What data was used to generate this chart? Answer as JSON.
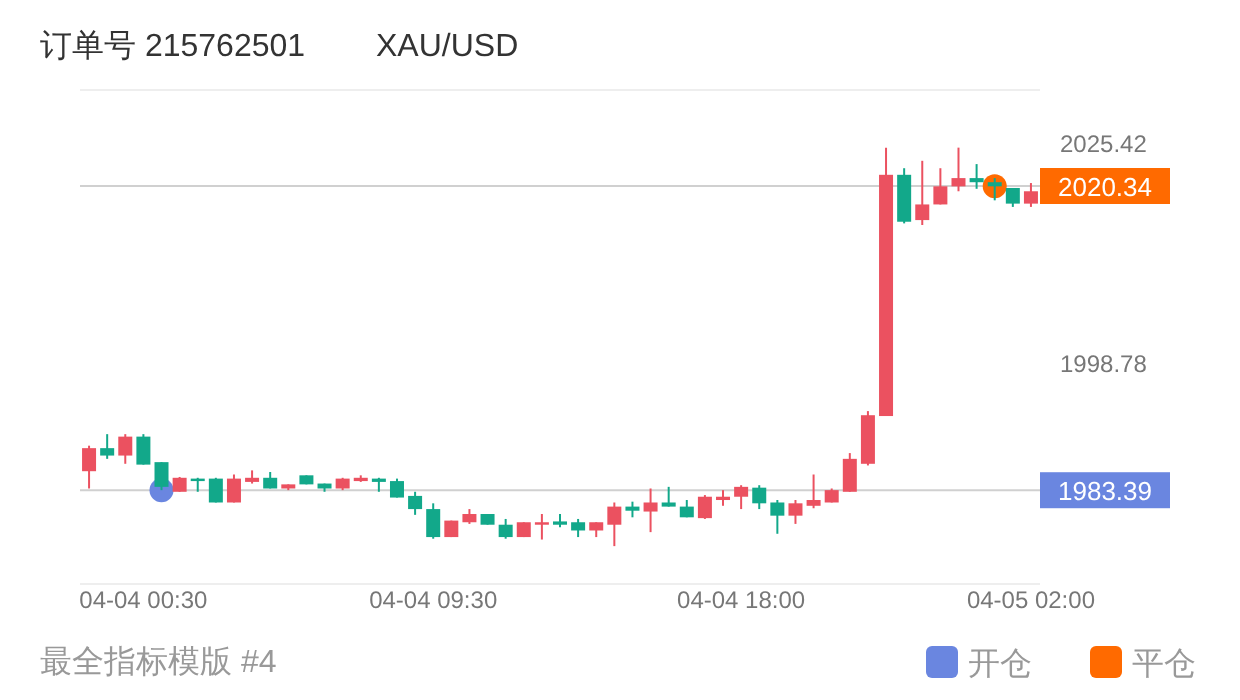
{
  "chart_data": {
    "type": "candlestick",
    "title": "订单号 215762501",
    "subtitle": "XAU/USD",
    "annotations": [
      "最全指标模版 #4"
    ],
    "categories": [
      null,
      null,
      null,
      "04-04 00:30",
      null,
      null,
      null,
      null,
      null,
      null,
      null,
      null,
      null,
      null,
      null,
      null,
      null,
      null,
      null,
      "04-04 09:30",
      null,
      null,
      null,
      null,
      null,
      null,
      null,
      null,
      null,
      null,
      null,
      null,
      null,
      null,
      null,
      null,
      "04-04 18:00",
      null,
      null,
      null,
      null,
      null,
      null,
      null,
      null,
      null,
      null,
      null,
      null,
      null,
      null,
      null,
      "04-05 02:00"
    ],
    "ohlc": [
      [
        1985.7,
        1988.8,
        1983.6,
        1988.5
      ],
      [
        1988.5,
        1990.2,
        1987.2,
        1987.6
      ],
      [
        1987.6,
        1990.2,
        1986.6,
        1989.9
      ],
      [
        1989.9,
        1990.2,
        1986.5,
        1986.5
      ],
      [
        1986.8,
        1986.8,
        1983.4,
        1983.8
      ],
      [
        1983.2,
        1985.0,
        1983.2,
        1984.9
      ],
      [
        1984.8,
        1984.9,
        1983.2,
        1984.5
      ],
      [
        1984.8,
        1984.9,
        1981.9,
        1981.9
      ],
      [
        1981.9,
        1985.3,
        1981.9,
        1984.8
      ],
      [
        1984.4,
        1985.8,
        1984.2,
        1984.9
      ],
      [
        1984.9,
        1985.6,
        1983.6,
        1983.6
      ],
      [
        1983.6,
        1984.1,
        1983.4,
        1984.1
      ],
      [
        1985.2,
        1985.2,
        1984.1,
        1984.1
      ],
      [
        1984.2,
        1984.2,
        1983.2,
        1983.6
      ],
      [
        1983.6,
        1984.9,
        1983.4,
        1984.8
      ],
      [
        1984.5,
        1985.2,
        1984.4,
        1984.9
      ],
      [
        1984.8,
        1984.9,
        1983.2,
        1984.4
      ],
      [
        1984.5,
        1984.8,
        1982.5,
        1982.5
      ],
      [
        1982.7,
        1983.2,
        1980.4,
        1981.1
      ],
      [
        1981.1,
        1981.8,
        1977.5,
        1977.7
      ],
      [
        1977.7,
        1979.7,
        1977.7,
        1979.7
      ],
      [
        1979.5,
        1981.1,
        1979.3,
        1980.5
      ],
      [
        1980.5,
        1980.5,
        1979.2,
        1979.2
      ],
      [
        1979.2,
        1979.9,
        1977.5,
        1977.7
      ],
      [
        1977.7,
        1979.5,
        1977.7,
        1979.5
      ],
      [
        1979.2,
        1980.5,
        1977.4,
        1979.5
      ],
      [
        1979.6,
        1980.5,
        1978.9,
        1979.2
      ],
      [
        1979.5,
        1979.9,
        1977.7,
        1978.5
      ],
      [
        1978.5,
        1979.5,
        1977.7,
        1979.5
      ],
      [
        1979.2,
        1981.9,
        1976.6,
        1981.4
      ],
      [
        1981.4,
        1982.0,
        1980.1,
        1980.9
      ],
      [
        1980.8,
        1983.6,
        1978.3,
        1981.9
      ],
      [
        1981.9,
        1983.8,
        1981.4,
        1981.4
      ],
      [
        1981.4,
        1982.2,
        1980.1,
        1980.1
      ],
      [
        1980.0,
        1982.8,
        1979.9,
        1982.6
      ],
      [
        1982.2,
        1983.4,
        1981.5,
        1982.6
      ],
      [
        1982.6,
        1984.0,
        1981.1,
        1983.8
      ],
      [
        1983.7,
        1984.0,
        1981.1,
        1981.8
      ],
      [
        1981.9,
        1982.2,
        1978.1,
        1980.3
      ],
      [
        1980.3,
        1982.2,
        1979.3,
        1981.8
      ],
      [
        1981.5,
        1985.3,
        1981.2,
        1982.2
      ],
      [
        1981.9,
        1983.6,
        1981.9,
        1983.4
      ],
      [
        1983.2,
        1987.9,
        1983.2,
        1987.2
      ],
      [
        1986.6,
        1993.0,
        1986.4,
        1992.5
      ],
      [
        1992.4,
        2025.0,
        1992.4,
        2021.7
      ],
      [
        2021.7,
        2022.5,
        2015.8,
        2016.0
      ],
      [
        2016.2,
        2023.4,
        2015.6,
        2018.1
      ],
      [
        2018.1,
        2022.5,
        2018.1,
        2020.3
      ],
      [
        2020.3,
        2025.0,
        2019.7,
        2021.3
      ],
      [
        2021.3,
        2023.0,
        2020.0,
        2020.8
      ],
      [
        2020.8,
        2021.3,
        2018.6,
        2020.3
      ],
      [
        2020.1,
        2020.1,
        2017.8,
        2018.2
      ],
      [
        2018.2,
        2020.7,
        2017.8,
        2019.7
      ]
    ],
    "colors": [
      "#eb5160",
      "#12a88a",
      "#eb5160",
      "#12a88a",
      "#12a88a",
      "#eb5160",
      "#12a88a",
      "#12a88a",
      "#eb5160",
      "#eb5160",
      "#12a88a",
      "#eb5160",
      "#12a88a",
      "#12a88a",
      "#eb5160",
      "#eb5160",
      "#12a88a",
      "#12a88a",
      "#12a88a",
      "#12a88a",
      "#eb5160",
      "#eb5160",
      "#12a88a",
      "#12a88a",
      "#eb5160",
      "#eb5160",
      "#12a88a",
      "#12a88a",
      "#eb5160",
      "#eb5160",
      "#12a88a",
      "#eb5160",
      "#12a88a",
      "#12a88a",
      "#eb5160",
      "#eb5160",
      "#eb5160",
      "#12a88a",
      "#12a88a",
      "#eb5160",
      "#eb5160",
      "#eb5160",
      "#eb5160",
      "#eb5160",
      "#eb5160",
      "#12a88a",
      "#eb5160",
      "#eb5160",
      "#eb5160",
      "#12a88a",
      "#12a88a",
      "#12a88a",
      "#eb5160"
    ],
    "series": [
      {
        "name": "开仓",
        "type": "scatter",
        "color": "#6a86e0",
        "values": [
          null,
          null,
          null,
          null,
          1983.4,
          null,
          null,
          null,
          null,
          null,
          null,
          null,
          null,
          null,
          null,
          null,
          null,
          null,
          null,
          null,
          null,
          null,
          null,
          null,
          null,
          null,
          null,
          null,
          null,
          null,
          null,
          null,
          null,
          null,
          null,
          null,
          null,
          null,
          null,
          null,
          null,
          null,
          null,
          null,
          null,
          null,
          null,
          null,
          null,
          null,
          null,
          null,
          null
        ]
      },
      {
        "name": "平仓",
        "type": "scatter",
        "color": "#ff6a00",
        "values": [
          null,
          null,
          null,
          null,
          null,
          null,
          null,
          null,
          null,
          null,
          null,
          null,
          null,
          null,
          null,
          null,
          null,
          null,
          null,
          null,
          null,
          null,
          null,
          null,
          null,
          null,
          null,
          null,
          null,
          null,
          null,
          null,
          null,
          null,
          null,
          null,
          null,
          null,
          null,
          null,
          null,
          null,
          null,
          null,
          null,
          null,
          null,
          null,
          null,
          null,
          2020.3,
          null,
          null
        ]
      }
    ],
    "ylim": [
      1972,
      2032
    ],
    "yticks": [
      2025.42,
      1998.78
    ],
    "ref_lines": [
      {
        "axis": "y",
        "value": 1983.39,
        "label": "1983.39"
      },
      {
        "axis": "y",
        "value": 2020.34,
        "label": "2020.34"
      }
    ],
    "legend": "bottom right",
    "marker": "circle"
  }
}
